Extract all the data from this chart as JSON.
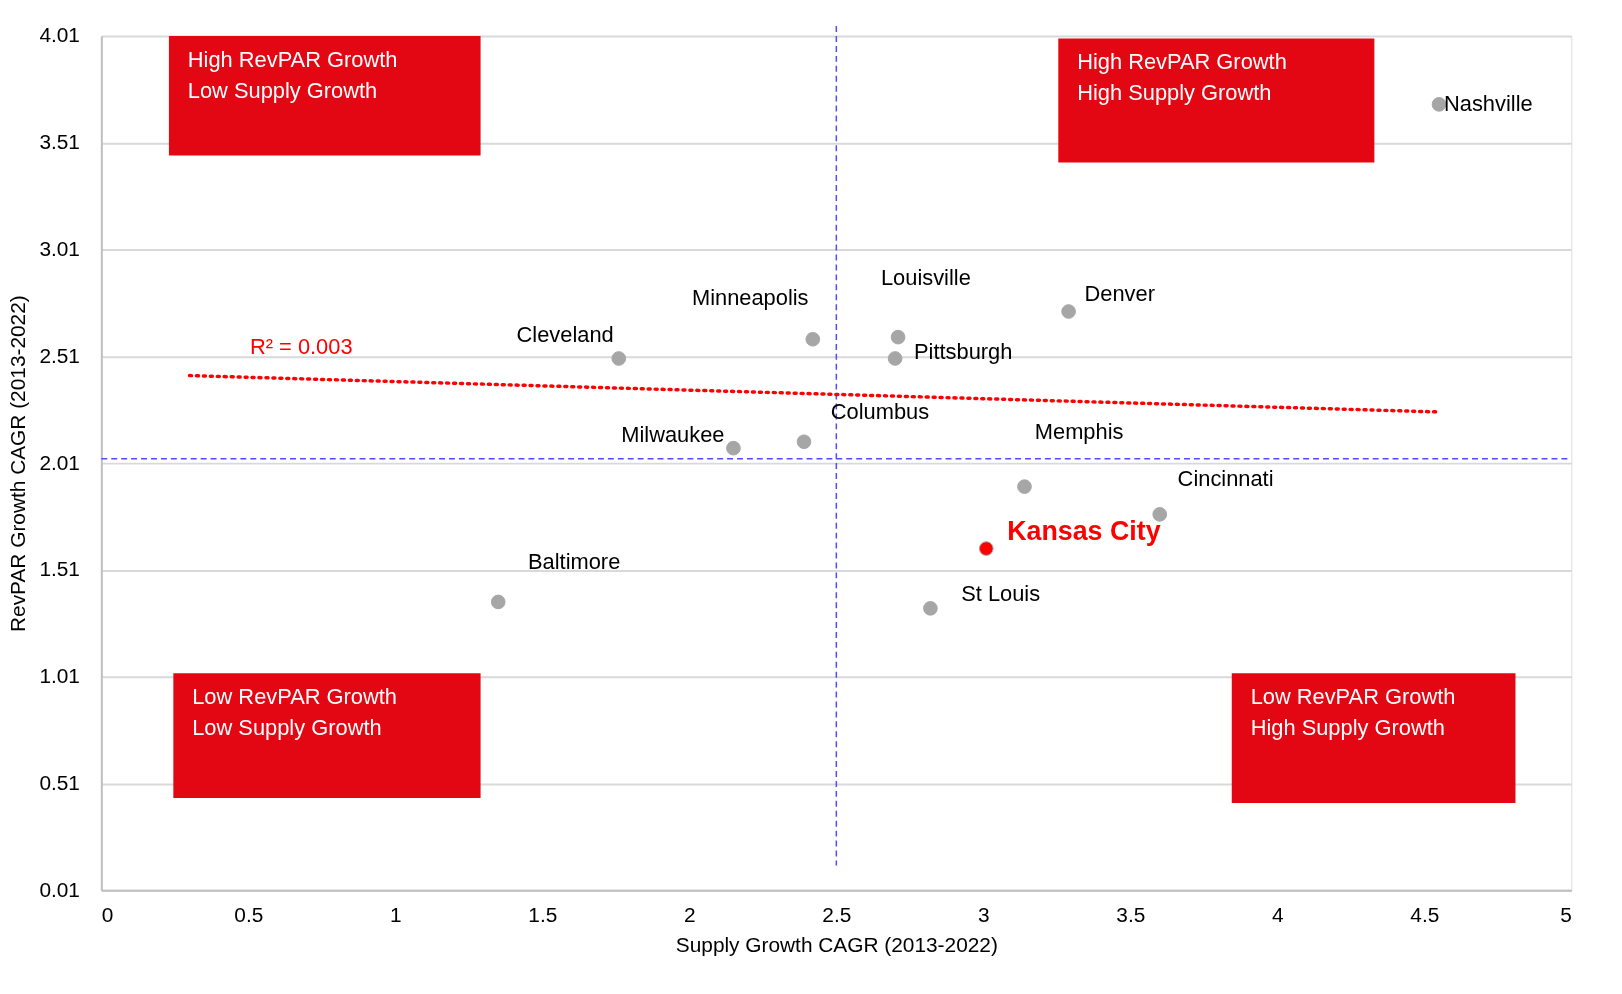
{
  "chart_data": {
    "type": "scatter",
    "xlabel": "Supply Growth CAGR (2013-2022)",
    "ylabel": "RevPAR Growth CAGR (2013-2022)",
    "xlim": [
      0,
      5
    ],
    "xticks": [
      0,
      0.5,
      1,
      1.5,
      2,
      2.5,
      3,
      3.5,
      4,
      4.5,
      5
    ],
    "ylim": [
      0.01,
      4.01
    ],
    "yticks": [
      0.01,
      0.51,
      1.01,
      1.51,
      2.01,
      2.51,
      3.01,
      3.51,
      4.01
    ],
    "grid": "y",
    "legend": false,
    "marker": "circle",
    "series": [
      {
        "name": "Nashville",
        "color": "#a6a6a6",
        "x": [
          4.55
        ],
        "values": [
          3.69
        ]
      },
      {
        "name": "Denver",
        "color": "#a6a6a6",
        "x": [
          3.29
        ],
        "values": [
          2.72
        ]
      },
      {
        "name": "Louisville",
        "color": "#a6a6a6",
        "x": [
          2.71
        ],
        "values": [
          2.6
        ]
      },
      {
        "name": "Pittsburgh",
        "color": "#a6a6a6",
        "x": [
          2.7
        ],
        "values": [
          2.5
        ]
      },
      {
        "name": "Minneapolis",
        "color": "#a6a6a6",
        "x": [
          2.42
        ],
        "values": [
          2.59
        ]
      },
      {
        "name": "Cleveland",
        "color": "#a6a6a6",
        "x": [
          1.76
        ],
        "values": [
          2.5
        ]
      },
      {
        "name": "Milwaukee",
        "color": "#a6a6a6",
        "x": [
          2.15
        ],
        "values": [
          2.08
        ]
      },
      {
        "name": "Columbus",
        "color": "#a6a6a6",
        "x": [
          2.39
        ],
        "values": [
          2.11
        ]
      },
      {
        "name": "Memphis",
        "color": "#a6a6a6",
        "x": [
          3.14
        ],
        "values": [
          1.9
        ]
      },
      {
        "name": "Cincinnati",
        "color": "#a6a6a6",
        "x": [
          3.6
        ],
        "values": [
          1.77
        ]
      },
      {
        "name": "Kansas City",
        "color": "#ff0000",
        "x": [
          3.01
        ],
        "values": [
          1.61
        ]
      },
      {
        "name": "St Louis",
        "color": "#a6a6a6",
        "x": [
          2.82
        ],
        "values": [
          1.33
        ]
      },
      {
        "name": "Baltimore",
        "color": "#a6a6a6",
        "x": [
          1.35
        ],
        "values": [
          1.36
        ]
      },
      {
        "type": "line",
        "color": "#ff0000",
        "line_style": "dotted",
        "marker": "none",
        "x": [
          0.3,
          4.54
        ],
        "values": [
          2.42,
          2.25
        ]
      }
    ],
    "ref_lines": [
      {
        "axis": "x",
        "value": 2.5,
        "color": "#4d4dff",
        "line_style": "dashed"
      },
      {
        "axis": "y",
        "value": 2.03,
        "color": "#4d4dff",
        "line_style": "dashed"
      }
    ],
    "annotations": [
      "High RevPAR Growth\nLow Supply Growth",
      "High RevPAR Growth\nHigh Supply Growth",
      "Low RevPAR Growth\nLow Supply Growth",
      "Low RevPAR Growth\nHigh Supply Growth",
      "R² = 0.003"
    ]
  }
}
